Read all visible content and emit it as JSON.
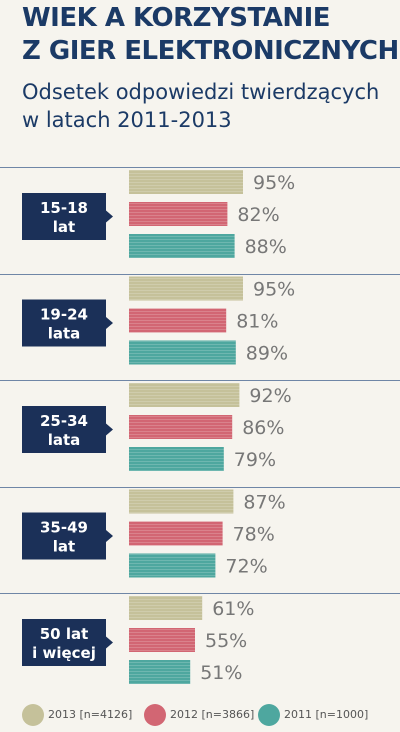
{
  "header": {
    "title_line1": "WIEK A KORZYSTANIE",
    "title_line2": "Z GIER ELEKTRONICZNYCH",
    "subtitle_line1": "Odsetek odpowiedzi twierdzących",
    "subtitle_line2": "w latach 2011-2013"
  },
  "colors": {
    "title": "#1b3a66",
    "label_box": "#1b3058",
    "series": [
      "#c5c19a",
      "#d26673",
      "#4ea79f"
    ],
    "background": "#f6f4ee"
  },
  "legend": {
    "items": [
      {
        "label": "2013 [n=4126]"
      },
      {
        "label": "2012 [n=3866]"
      },
      {
        "label": "2011 [n=1000]"
      }
    ]
  },
  "chart_data": {
    "type": "bar",
    "orientation": "horizontal",
    "title": "WIEK A KORZYSTANIE Z GIER ELEKTRONICZNYCH",
    "subtitle": "Odsetek odpowiedzi twierdzących w latach 2011-2013",
    "unit": "%",
    "xlim": [
      0,
      100
    ],
    "grid": false,
    "legend_position": "bottom",
    "categories": [
      [
        "15-18",
        "lat"
      ],
      [
        "19-24",
        "lata"
      ],
      [
        "25-34",
        "lata"
      ],
      [
        "35-49",
        "lat"
      ],
      [
        "50 lat",
        "i więcej"
      ]
    ],
    "series": [
      {
        "name": "2013 [n=4126]",
        "color": "#c5c19a",
        "values": [
          95,
          95,
          92,
          87,
          61
        ],
        "labels": [
          "95%",
          "95%",
          "92%",
          "87%",
          "61%"
        ]
      },
      {
        "name": "2012 [n=3866]",
        "color": "#d26673",
        "values": [
          82,
          81,
          86,
          78,
          55
        ],
        "labels": [
          "82%",
          "81%",
          "86%",
          "78%",
          "55%"
        ]
      },
      {
        "name": "2011 [n=1000]",
        "color": "#4ea79f",
        "values": [
          88,
          89,
          79,
          72,
          51
        ],
        "labels": [
          "88%",
          "89%",
          "79%",
          "72%",
          "51%"
        ]
      }
    ]
  }
}
